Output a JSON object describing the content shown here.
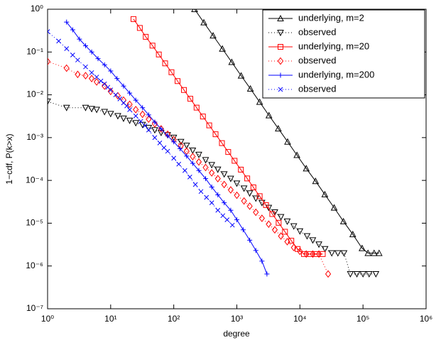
{
  "chart_data": {
    "type": "line",
    "xscale": "log",
    "yscale": "log",
    "xlabel": "degree",
    "ylabel": "1−cdf, P(k>x)",
    "xlim": [
      1,
      1000000
    ],
    "ylim": [
      1e-07,
      1
    ],
    "xticks": [
      {
        "value": 1,
        "label": "10⁰"
      },
      {
        "value": 10,
        "label": "10¹"
      },
      {
        "value": 100,
        "label": "10²"
      },
      {
        "value": 1000,
        "label": "10³"
      },
      {
        "value": 10000,
        "label": "10⁴"
      },
      {
        "value": 100000,
        "label": "10⁵"
      },
      {
        "value": 1000000,
        "label": "10⁶"
      }
    ],
    "yticks": [
      {
        "value": 1e-07,
        "label": "10⁻⁷"
      },
      {
        "value": 1e-06,
        "label": "10⁻⁶"
      },
      {
        "value": 1e-05,
        "label": "10⁻⁵"
      },
      {
        "value": 0.0001,
        "label": "10⁻⁴"
      },
      {
        "value": 0.001,
        "label": "10⁻³"
      },
      {
        "value": 0.01,
        "label": "10⁻²"
      },
      {
        "value": 0.1,
        "label": "10⁻¹"
      },
      {
        "value": 1,
        "label": "10⁰"
      }
    ],
    "legend": "upper right",
    "series": [
      {
        "name": "underlying, m=2",
        "color": "#000000",
        "line": "solid",
        "marker": "triangle-up",
        "x": [
          214,
          300,
          420,
          590,
          830,
          1170,
          1640,
          2300,
          3230,
          4540,
          6380,
          8960,
          12600,
          17700,
          24800,
          34900,
          49000,
          68800,
          96700,
          120000,
          150000,
          180000
        ],
        "values": [
          1,
          0.49,
          0.242,
          0.119,
          0.058,
          0.028,
          0.0139,
          0.0068,
          0.0033,
          0.00163,
          0.0008,
          0.00039,
          0.00019,
          9.6e-05,
          4.7e-05,
          2.3e-05,
          1.1e-05,
          5.5e-06,
          2.6e-06,
          2e-06,
          2e-06,
          2e-06
        ]
      },
      {
        "name": "observed",
        "color": "#000000",
        "line": "dotted",
        "marker": "triangle-down",
        "x": [
          1,
          2,
          4,
          5,
          6,
          8,
          10,
          13,
          16,
          20,
          25,
          32,
          40,
          50,
          63,
          80,
          100,
          130,
          160,
          200,
          250,
          320,
          400,
          500,
          630,
          800,
          1000,
          1300,
          1600,
          2000,
          2500,
          3200,
          4000,
          5000,
          6300,
          8000,
          10000,
          13000,
          16000,
          20000,
          25000,
          32000,
          40000,
          50000,
          63000,
          80000,
          100000,
          125000,
          160000
        ],
        "values": [
          0.007,
          0.005,
          0.005,
          0.0047,
          0.0045,
          0.004,
          0.0036,
          0.0032,
          0.0028,
          0.0025,
          0.0022,
          0.002,
          0.0017,
          0.0015,
          0.0013,
          0.00115,
          0.001,
          0.0008,
          0.00065,
          0.0005,
          0.0004,
          0.0003,
          0.00023,
          0.00018,
          0.00014,
          0.00011,
          8.5e-05,
          6.5e-05,
          5e-05,
          3.8e-05,
          3e-05,
          2.3e-05,
          1.8e-05,
          1.4e-05,
          1.1e-05,
          8.5e-06,
          6.5e-06,
          5e-06,
          4e-06,
          3.2e-06,
          2.5e-06,
          2e-06,
          2e-06,
          2e-06,
          6.5e-07,
          6.5e-07,
          6.5e-07,
          6.5e-07,
          6.5e-07
        ]
      },
      {
        "name": "underlying, m=20",
        "color": "#ff0000",
        "line": "solid",
        "marker": "square",
        "x": [
          23,
          29,
          36,
          46,
          58,
          73,
          92,
          115,
          145,
          183,
          230,
          290,
          365,
          460,
          580,
          730,
          920,
          1160,
          1460,
          1830,
          2300,
          2900,
          3650,
          4600,
          5800,
          7300,
          9200,
          11600,
          14600,
          18300,
          23000
        ],
        "values": [
          0.59,
          0.366,
          0.227,
          0.141,
          0.0875,
          0.0543,
          0.0337,
          0.0209,
          0.013,
          0.00807,
          0.00501,
          0.00311,
          0.00193,
          0.0012,
          0.000745,
          0.000462,
          0.000287,
          0.000178,
          0.000111,
          6.87e-05,
          4.27e-05,
          2.65e-05,
          1.64e-05,
          1.02e-05,
          6.3e-06,
          3.9e-06,
          2.5e-06,
          1.9e-06,
          1.9e-06,
          1.9e-06,
          1.9e-06
        ]
      },
      {
        "name": "observed",
        "color": "#ff0000",
        "line": "dotted",
        "marker": "diamond",
        "x": [
          1,
          2,
          3,
          4,
          5,
          6,
          8,
          10,
          13,
          16,
          20,
          25,
          32,
          40,
          50,
          63,
          80,
          100,
          130,
          160,
          200,
          250,
          320,
          400,
          500,
          630,
          800,
          1000,
          1300,
          1600,
          2000,
          2500,
          3200,
          4000,
          5000,
          6300,
          8000,
          10000,
          12600,
          16000,
          20000,
          28000
        ],
        "values": [
          0.06,
          0.042,
          0.03,
          0.028,
          0.024,
          0.02,
          0.016,
          0.012,
          0.0095,
          0.0075,
          0.006,
          0.0045,
          0.0035,
          0.0027,
          0.0021,
          0.0016,
          0.0012,
          0.0009,
          0.00065,
          0.00048,
          0.00036,
          0.00027,
          0.0002,
          0.00015,
          0.00011,
          8e-05,
          6e-05,
          4.5e-05,
          3.3e-05,
          2.5e-05,
          1.8e-05,
          1.3e-05,
          9.5e-06,
          7e-06,
          5e-06,
          3.7e-06,
          2.7e-06,
          2.2e-06,
          1.9e-06,
          1.9e-06,
          1.9e-06,
          6.5e-07
        ]
      },
      {
        "name": "underlying, m=200",
        "color": "#0000ff",
        "line": "solid",
        "marker": "plus",
        "x": [
          2,
          2.5,
          3.2,
          4,
          5,
          6.3,
          8,
          10,
          12.6,
          16,
          20,
          25,
          32,
          40,
          50,
          63,
          80,
          100,
          126,
          160,
          200,
          250,
          320,
          400,
          500,
          630,
          800,
          1000,
          1260,
          1600,
          2000,
          2500,
          3000
        ],
        "values": [
          0.5,
          0.33,
          0.2,
          0.14,
          0.1,
          0.07,
          0.05,
          0.036,
          0.024,
          0.016,
          0.011,
          0.0075,
          0.005,
          0.0034,
          0.0023,
          0.0016,
          0.0011,
          0.0008,
          0.00055,
          0.00037,
          0.00025,
          0.00017,
          0.00011,
          7e-05,
          4.6e-05,
          3e-05,
          2e-05,
          1.2e-05,
          7e-06,
          4e-06,
          2.3e-06,
          1.3e-06,
          6.5e-07
        ]
      },
      {
        "name": "observed",
        "color": "#0000ff",
        "line": "dotted",
        "marker": "cross",
        "x": [
          1,
          1.5,
          2,
          2.5,
          3,
          4,
          5,
          6,
          7,
          8,
          9,
          10,
          12,
          14,
          16,
          18,
          20,
          25,
          30,
          35,
          40,
          50,
          60,
          70,
          80,
          100,
          120,
          150,
          180,
          220,
          270,
          330,
          400,
          500,
          600,
          700,
          850
        ],
        "values": [
          0.3,
          0.18,
          0.12,
          0.085,
          0.065,
          0.045,
          0.033,
          0.026,
          0.021,
          0.018,
          0.015,
          0.013,
          0.01,
          0.008,
          0.0065,
          0.0055,
          0.0045,
          0.0032,
          0.0024,
          0.0019,
          0.0015,
          0.001,
          0.00075,
          0.00058,
          0.00048,
          0.00033,
          0.00024,
          0.00017,
          0.00012,
          8e-05,
          5.5e-05,
          4e-05,
          3e-05,
          2e-05,
          1.5e-05,
          1.2e-05,
          9e-06
        ]
      }
    ]
  }
}
